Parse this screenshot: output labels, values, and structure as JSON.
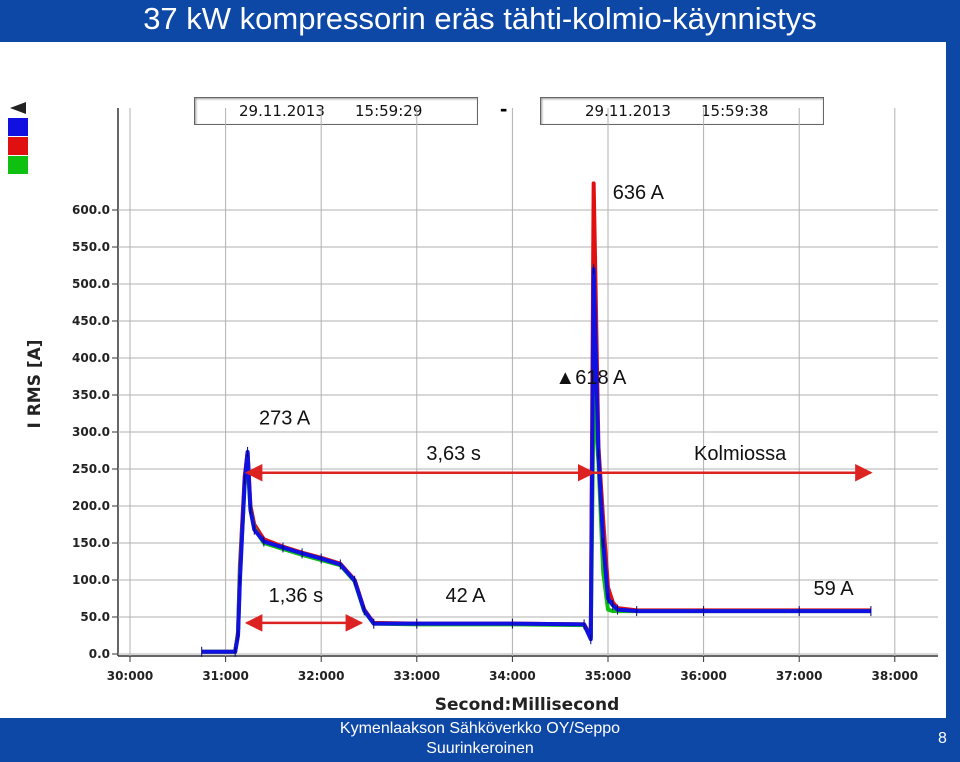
{
  "slide": {
    "title": "37 kW kompressorin eräs tähti-kolmio-käynnistys",
    "footer": "Kymenlaakson Sähköverkko OY/Seppo Suurinkeroinen",
    "page_number": "8"
  },
  "time_range": {
    "start_date": "29.11.2013",
    "start_time": "15:59:29",
    "separator": "-",
    "end_date": "29.11.2013",
    "end_time": "15:59:38"
  },
  "colors": {
    "background": "#0d48a6",
    "phase_blue": "#1010e0",
    "phase_red": "#e01010",
    "phase_green": "#10c010",
    "arrow": "#dd2222",
    "grid": "#b0b0b0"
  },
  "chart_data": {
    "type": "line",
    "xlabel": "Second:Millisecond",
    "ylabel": "I RMS [A]",
    "xlim": [
      30.0,
      38.3
    ],
    "ylim": [
      0,
      640
    ],
    "grid": true,
    "x_ticks": [
      "30:000",
      "31:000",
      "32:000",
      "33:000",
      "34:000",
      "35:000",
      "36:000",
      "37:000",
      "38:000"
    ],
    "y_ticks": [
      "0.0",
      "50.0",
      "100.0",
      "150.0",
      "200.0",
      "250.0",
      "300.0",
      "350.0",
      "400.0",
      "450.0",
      "500.0",
      "550.0",
      "600.0"
    ],
    "series": [
      {
        "color": "#e01010",
        "x": [
          30.75,
          31.1,
          31.13,
          31.15,
          31.2,
          31.23,
          31.26,
          31.3,
          31.4,
          31.6,
          31.8,
          32.0,
          32.2,
          32.35,
          32.45,
          32.55,
          33.0,
          34.0,
          34.75,
          34.82,
          34.85,
          34.9,
          34.95,
          35.0,
          35.05,
          35.1,
          35.3,
          36.0,
          37.0,
          37.75
        ],
        "y": [
          3,
          3,
          30,
          120,
          240,
          272,
          200,
          175,
          155,
          145,
          137,
          130,
          122,
          100,
          60,
          42,
          41,
          41,
          40,
          25,
          636,
          280,
          180,
          90,
          70,
          62,
          59,
          59,
          59,
          59
        ]
      },
      {
        "color": "#10c010",
        "x": [
          30.75,
          31.1,
          31.13,
          31.15,
          31.2,
          31.23,
          31.26,
          31.3,
          31.4,
          31.6,
          31.8,
          32.0,
          32.2,
          32.35,
          32.45,
          32.55,
          33.0,
          34.0,
          34.75,
          34.82,
          34.85,
          34.9,
          34.95,
          35.0,
          35.05,
          35.1,
          35.3,
          36.0,
          37.0,
          37.75
        ],
        "y": [
          3,
          3,
          28,
          110,
          230,
          260,
          195,
          170,
          150,
          142,
          134,
          127,
          120,
          98,
          58,
          41,
          40,
          40,
          39,
          22,
          355,
          260,
          110,
          60,
          58,
          58,
          58,
          58,
          58,
          58
        ]
      },
      {
        "color": "#1010e0",
        "x": [
          30.75,
          31.1,
          31.13,
          31.15,
          31.2,
          31.23,
          31.26,
          31.3,
          31.4,
          31.6,
          31.8,
          32.0,
          32.2,
          32.35,
          32.45,
          32.55,
          33.0,
          34.0,
          34.75,
          34.82,
          34.85,
          34.9,
          34.95,
          35.0,
          35.05,
          35.1,
          35.3,
          36.0,
          37.0,
          37.75
        ],
        "y": [
          3,
          3,
          25,
          100,
          235,
          273,
          195,
          168,
          152,
          144,
          136,
          129,
          121,
          99,
          59,
          41,
          41,
          41,
          40,
          20,
          520,
          270,
          150,
          75,
          66,
          60,
          58,
          58,
          58,
          58
        ]
      }
    ],
    "annotations": [
      {
        "text": "636 A",
        "x": 35.05,
        "y": 615
      },
      {
        "text": "618 A",
        "x": 34.45,
        "y": 365,
        "marker": "▲"
      },
      {
        "text": "273 A",
        "x": 31.35,
        "y": 310
      },
      {
        "text": "3,63 s",
        "x": 33.1,
        "y": 262
      },
      {
        "text": "Kolmiossa",
        "x": 35.9,
        "y": 262
      },
      {
        "text": "1,36 s",
        "x": 31.45,
        "y": 70
      },
      {
        "text": "42 A",
        "x": 33.3,
        "y": 70
      },
      {
        "text": "59 A",
        "x": 37.15,
        "y": 80
      }
    ],
    "arrows": [
      {
        "x1": 31.22,
        "x2": 34.85,
        "y": 245,
        "heads": "both"
      },
      {
        "x1": 34.85,
        "x2": 37.75,
        "y": 245,
        "heads": "end"
      },
      {
        "x1": 31.22,
        "x2": 32.42,
        "y": 42,
        "heads": "both"
      }
    ]
  }
}
